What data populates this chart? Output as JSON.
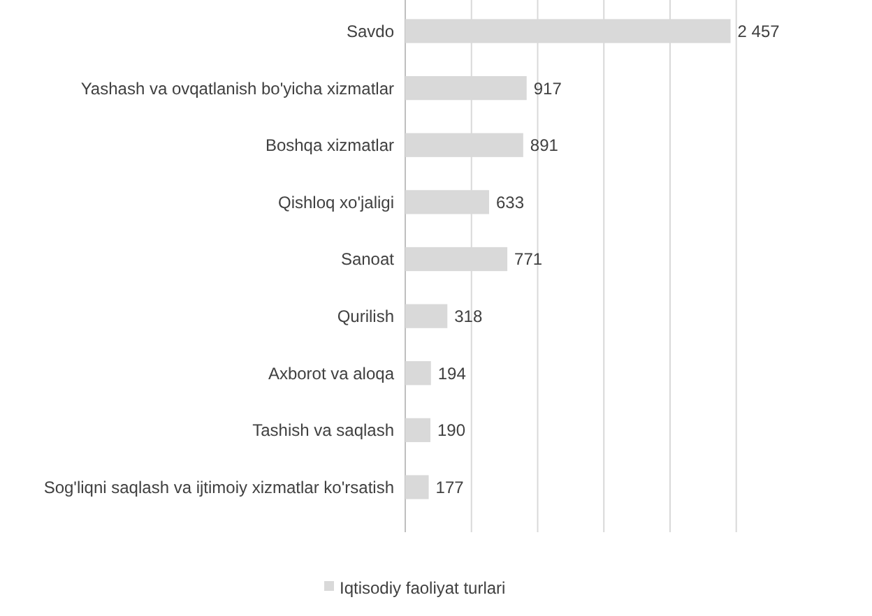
{
  "chart_data": {
    "type": "bar",
    "orientation": "horizontal",
    "categories": [
      "Savdo",
      "Yashash va ovqatlanish bo'yicha xizmatlar",
      "Boshqa xizmatlar",
      "Qishloq xo'jaligi",
      "Sanoat",
      "Qurilish",
      "Axborot va aloqa",
      "Tashish va saqlash",
      "Sog'liqni saqlash va ijtimoiy xizmatlar ko'rsatish"
    ],
    "series": [
      {
        "name": "Iqtisodiy faoliyat turlari",
        "color": "#d9d9d9",
        "values": [
          2457,
          917,
          891,
          633,
          771,
          318,
          194,
          190,
          177
        ],
        "value_labels": [
          "2 457",
          "917",
          "891",
          "633",
          "771",
          "318",
          "194",
          "190",
          "177"
        ]
      }
    ],
    "tick_labels": "y",
    "grid": "x",
    "legend": "bottom"
  }
}
